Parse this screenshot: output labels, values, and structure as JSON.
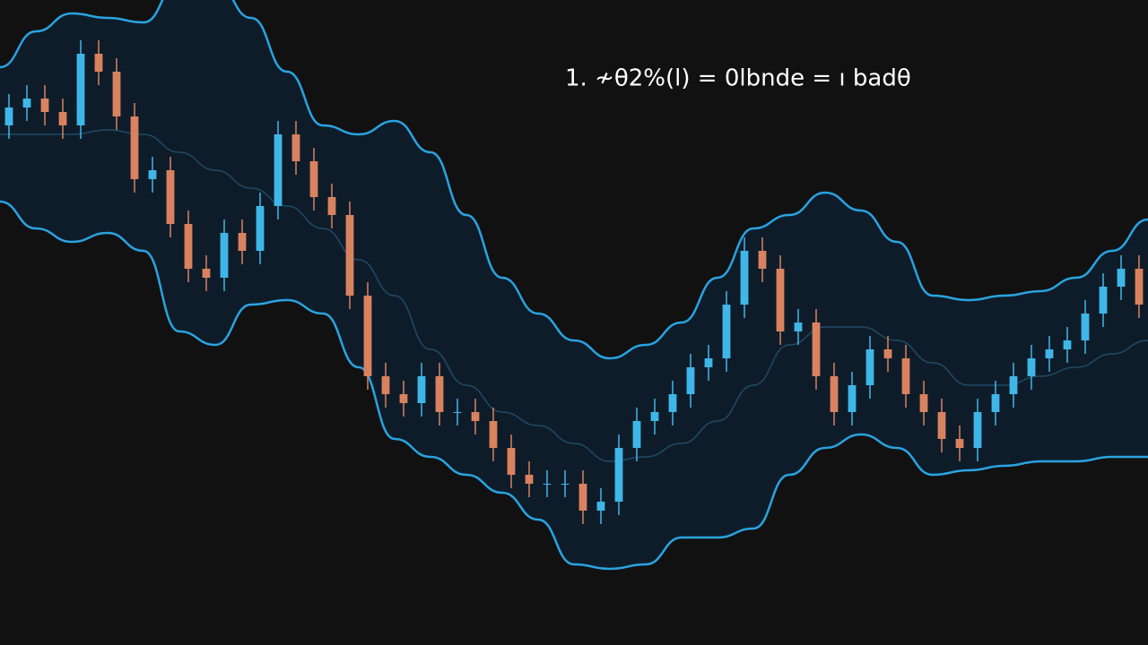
{
  "chart_data": {
    "type": "candlestick",
    "title": "1. ≁θ2%(l) = 0lbnde = ı badθ",
    "up_color": "#3fb6e8",
    "down_color": "#d9825f",
    "band_fill": "#0e1c2a",
    "bands": [
      {
        "color": "#2aa3e0",
        "values": [
          64.5,
          68.5,
          70.5,
          70,
          69.5,
          74,
          74,
          70,
          64,
          58,
          57,
          58.5,
          55,
          48,
          41,
          37,
          34,
          32,
          33.5,
          36,
          41,
          46.5,
          48,
          50.5,
          48.5,
          45,
          39,
          38.5,
          39,
          39.5,
          41,
          44,
          47.5
        ]
      },
      {
        "color": "#1f4a66",
        "values": [
          57,
          57,
          57,
          57.5,
          57,
          55,
          53,
          51,
          49,
          46.5,
          43,
          39,
          33,
          29,
          26,
          24.5,
          22.5,
          20.5,
          21,
          22.5,
          25,
          29,
          33.5,
          35.5,
          35.5,
          34,
          31.5,
          29,
          29,
          30,
          31,
          32.5,
          34
        ]
      },
      {
        "color": "#2aa3e0",
        "values": [
          49.5,
          46.5,
          45,
          46,
          44,
          35,
          33.5,
          38,
          38.5,
          37,
          31,
          23,
          21,
          19,
          17,
          14,
          9,
          8.5,
          9,
          12,
          12,
          13,
          19,
          22,
          23.5,
          22,
          19,
          19.5,
          20,
          20.5,
          20.5,
          21,
          21
        ]
      }
    ],
    "open": [
      58,
      60,
      61,
      59.5,
      58,
      66,
      64,
      59,
      52,
      53,
      47,
      42,
      41,
      46,
      44,
      49,
      57,
      54,
      50,
      48,
      39,
      30,
      28,
      27,
      30,
      26,
      26,
      25,
      22,
      19,
      18,
      18,
      18,
      15,
      16,
      22,
      25,
      26,
      28,
      31,
      32,
      38,
      44,
      42,
      35,
      36,
      30,
      26,
      29,
      33,
      32,
      28,
      26,
      23,
      22,
      26,
      28,
      30,
      32,
      33,
      34,
      37,
      40,
      42
    ],
    "high": [
      61.5,
      62.5,
      62.5,
      61,
      67.5,
      67.5,
      65.5,
      60.5,
      54.5,
      54.5,
      48.5,
      43.5,
      47.5,
      47.5,
      50.5,
      58.5,
      58.5,
      55.5,
      51.5,
      49.5,
      40.5,
      31.5,
      29.5,
      31.5,
      31.5,
      27.5,
      27.5,
      26.5,
      23.5,
      20.5,
      19.5,
      19.5,
      19.5,
      17.5,
      23.5,
      26.5,
      27.5,
      29.5,
      32.5,
      33.5,
      39.5,
      45.5,
      45.5,
      43.5,
      37.5,
      37.5,
      31.5,
      30.5,
      34.5,
      34.5,
      33.5,
      29.5,
      27.5,
      24.5,
      27.5,
      29.5,
      31.5,
      33.5,
      34.5,
      35.5,
      38.5,
      41.5,
      43.5,
      43.5
    ],
    "low": [
      56.5,
      58.5,
      58,
      56.5,
      56.5,
      62.5,
      57.5,
      50.5,
      50.5,
      45.5,
      40.5,
      39.5,
      39.5,
      42.5,
      42.5,
      47.5,
      52.5,
      48.5,
      46.5,
      37.5,
      28.5,
      26.5,
      25.5,
      25.5,
      24.5,
      24.5,
      23.5,
      20.5,
      17.5,
      16.5,
      16.5,
      16.5,
      13.5,
      13.5,
      14.5,
      20.5,
      23.5,
      24.5,
      26.5,
      29.5,
      30.5,
      36.5,
      40.5,
      33.5,
      33.5,
      28.5,
      24.5,
      24.5,
      27.5,
      30.5,
      26.5,
      24.5,
      21.5,
      20.5,
      20.5,
      24.5,
      26.5,
      28.5,
      30.5,
      31.5,
      32.5,
      35.5,
      38.5,
      36.5
    ],
    "close": [
      60,
      61,
      59.5,
      58,
      66,
      64,
      59,
      52,
      53,
      47,
      42,
      41,
      46,
      44,
      49,
      57,
      54,
      50,
      48,
      39,
      30,
      28,
      27,
      30,
      26,
      26,
      25,
      22,
      19,
      18,
      18,
      18,
      15,
      16,
      22,
      25,
      26,
      28,
      31,
      32,
      38,
      44,
      42,
      35,
      36,
      30,
      26,
      29,
      33,
      32,
      28,
      26,
      23,
      22,
      26,
      28,
      30,
      32,
      33,
      34,
      37,
      40,
      42,
      38
    ]
  }
}
